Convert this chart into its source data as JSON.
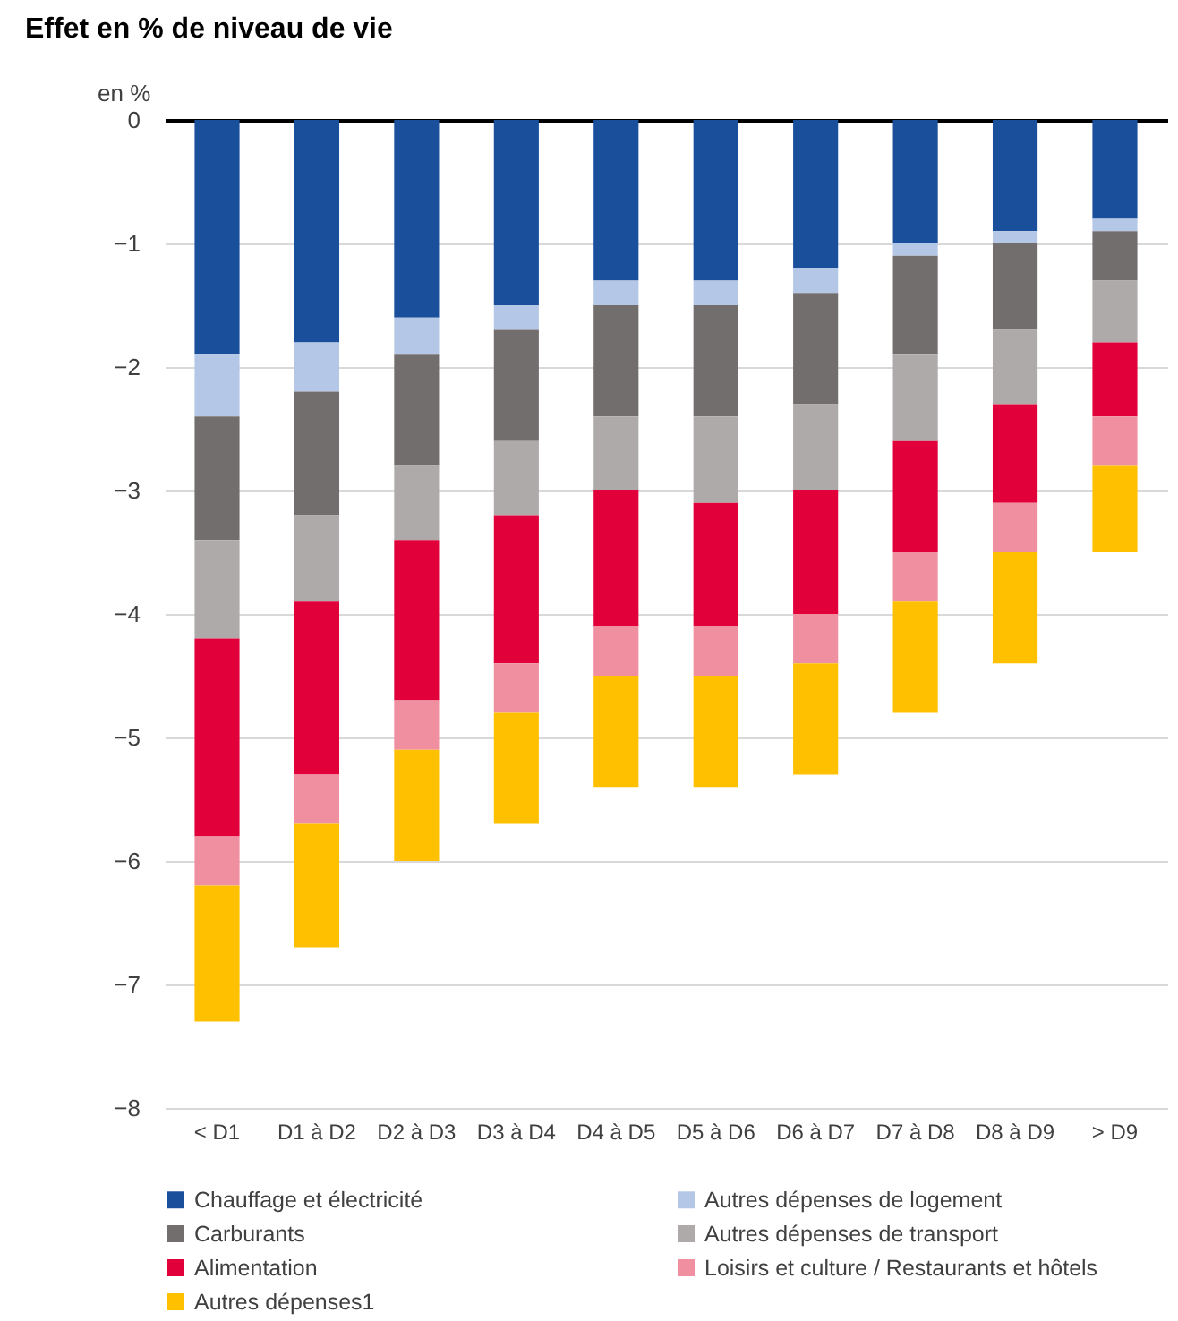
{
  "chart_data": {
    "type": "bar",
    "title": "Effet en % de niveau de vie",
    "ylabel": "en %",
    "stacked": true,
    "categories": [
      "< D1",
      "D1 à D2",
      "D2 à D3",
      "D3 à D4",
      "D4 à D5",
      "D5 à D6",
      "D6 à D7",
      "D7 à D8",
      "D8 à D9",
      "> D9"
    ],
    "series": [
      {
        "name": "Chauffage et électricité",
        "color": "#1a4f9c",
        "values": [
          -1.9,
          -1.8,
          -1.6,
          -1.5,
          -1.3,
          -1.3,
          -1.2,
          -1.0,
          -0.9,
          -0.8
        ]
      },
      {
        "name": "Autres dépenses de logement",
        "color": "#b4c7e7",
        "values": [
          -0.5,
          -0.4,
          -0.3,
          -0.2,
          -0.2,
          -0.2,
          -0.2,
          -0.1,
          -0.1,
          -0.1
        ]
      },
      {
        "name": "Carburants",
        "color": "#736e6e",
        "values": [
          -1.0,
          -1.0,
          -0.9,
          -0.9,
          -0.9,
          -0.9,
          -0.9,
          -0.8,
          -0.7,
          -0.4
        ]
      },
      {
        "name": "Autres dépenses de transport",
        "color": "#aeaaaa",
        "values": [
          -0.8,
          -0.7,
          -0.6,
          -0.6,
          -0.6,
          -0.7,
          -0.7,
          -0.7,
          -0.6,
          -0.5
        ]
      },
      {
        "name": "Alimentation",
        "color": "#e2003a",
        "values": [
          -1.6,
          -1.4,
          -1.3,
          -1.2,
          -1.1,
          -1.0,
          -1.0,
          -0.9,
          -0.8,
          -0.6
        ]
      },
      {
        "name": "Loisirs et culture / Restaurants et hôtels",
        "color": "#f08fa0",
        "values": [
          -0.4,
          -0.4,
          -0.4,
          -0.4,
          -0.4,
          -0.4,
          -0.4,
          -0.4,
          -0.4,
          -0.4
        ]
      },
      {
        "name": "Autres dépenses1",
        "color": "#ffc000",
        "values": [
          -1.1,
          -1.0,
          -0.9,
          -0.9,
          -0.9,
          -0.9,
          -0.9,
          -0.9,
          -0.9,
          -0.7
        ]
      }
    ],
    "ylim": [
      -8,
      0
    ],
    "yticks": [
      -8,
      -7,
      -6,
      -5,
      -4,
      -3,
      -2,
      -1,
      0
    ],
    "grid": "y",
    "legend": "bottom"
  }
}
